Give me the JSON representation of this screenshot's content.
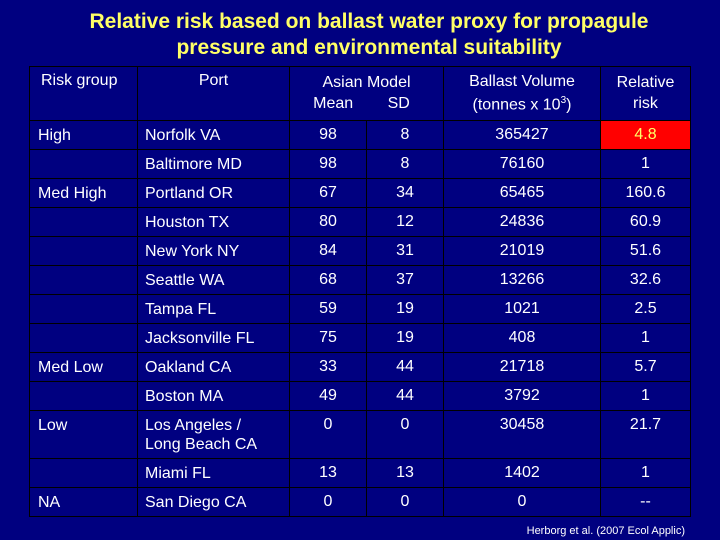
{
  "title": {
    "line1": "Relative risk based on ballast water proxy for propagule",
    "line2": "pressure and environmental suitability"
  },
  "headers": {
    "risk_group": "Risk group",
    "port": "Port",
    "asian_model": "Asian Model",
    "mean": "Mean",
    "sd": "SD",
    "ballast_line1": "Ballast  Volume",
    "ballast_line2_pre": "(tonnes x 10",
    "ballast_exp": "3",
    "ballast_line2_post": ")",
    "relative_line1": "Relative",
    "relative_line2": "risk"
  },
  "rows": [
    {
      "group": "High",
      "port": "Norfolk VA",
      "mean": "98",
      "sd": "8",
      "ballast": "365427",
      "risk": "4.8"
    },
    {
      "group": "",
      "port": "Baltimore MD",
      "mean": "98",
      "sd": "8",
      "ballast": "76160",
      "risk": "1"
    },
    {
      "group": "Med High",
      "port": "Portland OR",
      "mean": "67",
      "sd": "34",
      "ballast": "65465",
      "risk": "160.6"
    },
    {
      "group": "",
      "port": "Houston TX",
      "mean": "80",
      "sd": "12",
      "ballast": "24836",
      "risk": "60.9"
    },
    {
      "group": "",
      "port": "New York NY",
      "mean": "84",
      "sd": "31",
      "ballast": "21019",
      "risk": "51.6"
    },
    {
      "group": "",
      "port": "Seattle WA",
      "mean": "68",
      "sd": "37",
      "ballast": "13266",
      "risk": "32.6"
    },
    {
      "group": "",
      "port": "Tampa FL",
      "mean": "59",
      "sd": "19",
      "ballast": "1021",
      "risk": "2.5"
    },
    {
      "group": "",
      "port": "Jacksonville FL",
      "mean": "75",
      "sd": "19",
      "ballast": "408",
      "risk": "1"
    },
    {
      "group": "Med Low",
      "port": "Oakland CA",
      "mean": "33",
      "sd": "44",
      "ballast": "21718",
      "risk": "5.7"
    },
    {
      "group": "",
      "port": "Boston MA",
      "mean": "49",
      "sd": "44",
      "ballast": "3792",
      "risk": "1"
    },
    {
      "group": "Low",
      "port": "Los Angeles /",
      "port2": "Long Beach CA",
      "mean": "0",
      "sd": "0",
      "ballast": "30458",
      "risk": "21.7"
    },
    {
      "group": "",
      "port": "Miami FL",
      "mean": "13",
      "sd": "13",
      "ballast": "1402",
      "risk": "1"
    },
    {
      "group": "NA",
      "port": "San Diego CA",
      "mean": "0",
      "sd": "0",
      "ballast": "0",
      "risk": "--"
    }
  ],
  "highlight_color": "#ff0000",
  "credit": "Herborg et al. (2007 Ecol Applic)"
}
